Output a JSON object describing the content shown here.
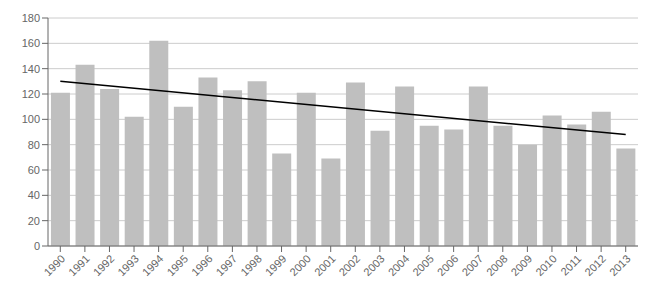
{
  "chart_data": {
    "type": "bar",
    "categories": [
      "1990",
      "1991",
      "1992",
      "1993",
      "1994",
      "1995",
      "1996",
      "1997",
      "1998",
      "1999",
      "2000",
      "2001",
      "2002",
      "2003",
      "2004",
      "2005",
      "2006",
      "2007",
      "2008",
      "2009",
      "2010",
      "2011",
      "2012",
      "2013"
    ],
    "series": [
      {
        "type": "bar",
        "color": "#bfbfbf",
        "values": [
          121,
          143,
          124,
          102,
          162,
          110,
          133,
          123,
          130,
          73,
          121,
          69,
          129,
          91,
          126,
          95,
          92,
          126,
          95,
          80,
          103,
          96,
          106,
          77
        ]
      },
      {
        "type": "line",
        "color": "#000000",
        "values": [
          130,
          null,
          null,
          null,
          null,
          null,
          null,
          null,
          null,
          null,
          null,
          null,
          null,
          null,
          null,
          null,
          null,
          null,
          null,
          null,
          null,
          null,
          null,
          88
        ]
      }
    ],
    "ylim": [
      0,
      180
    ],
    "yticks": [
      0,
      20,
      40,
      60,
      80,
      100,
      120,
      140,
      160,
      180
    ],
    "grid": true
  }
}
